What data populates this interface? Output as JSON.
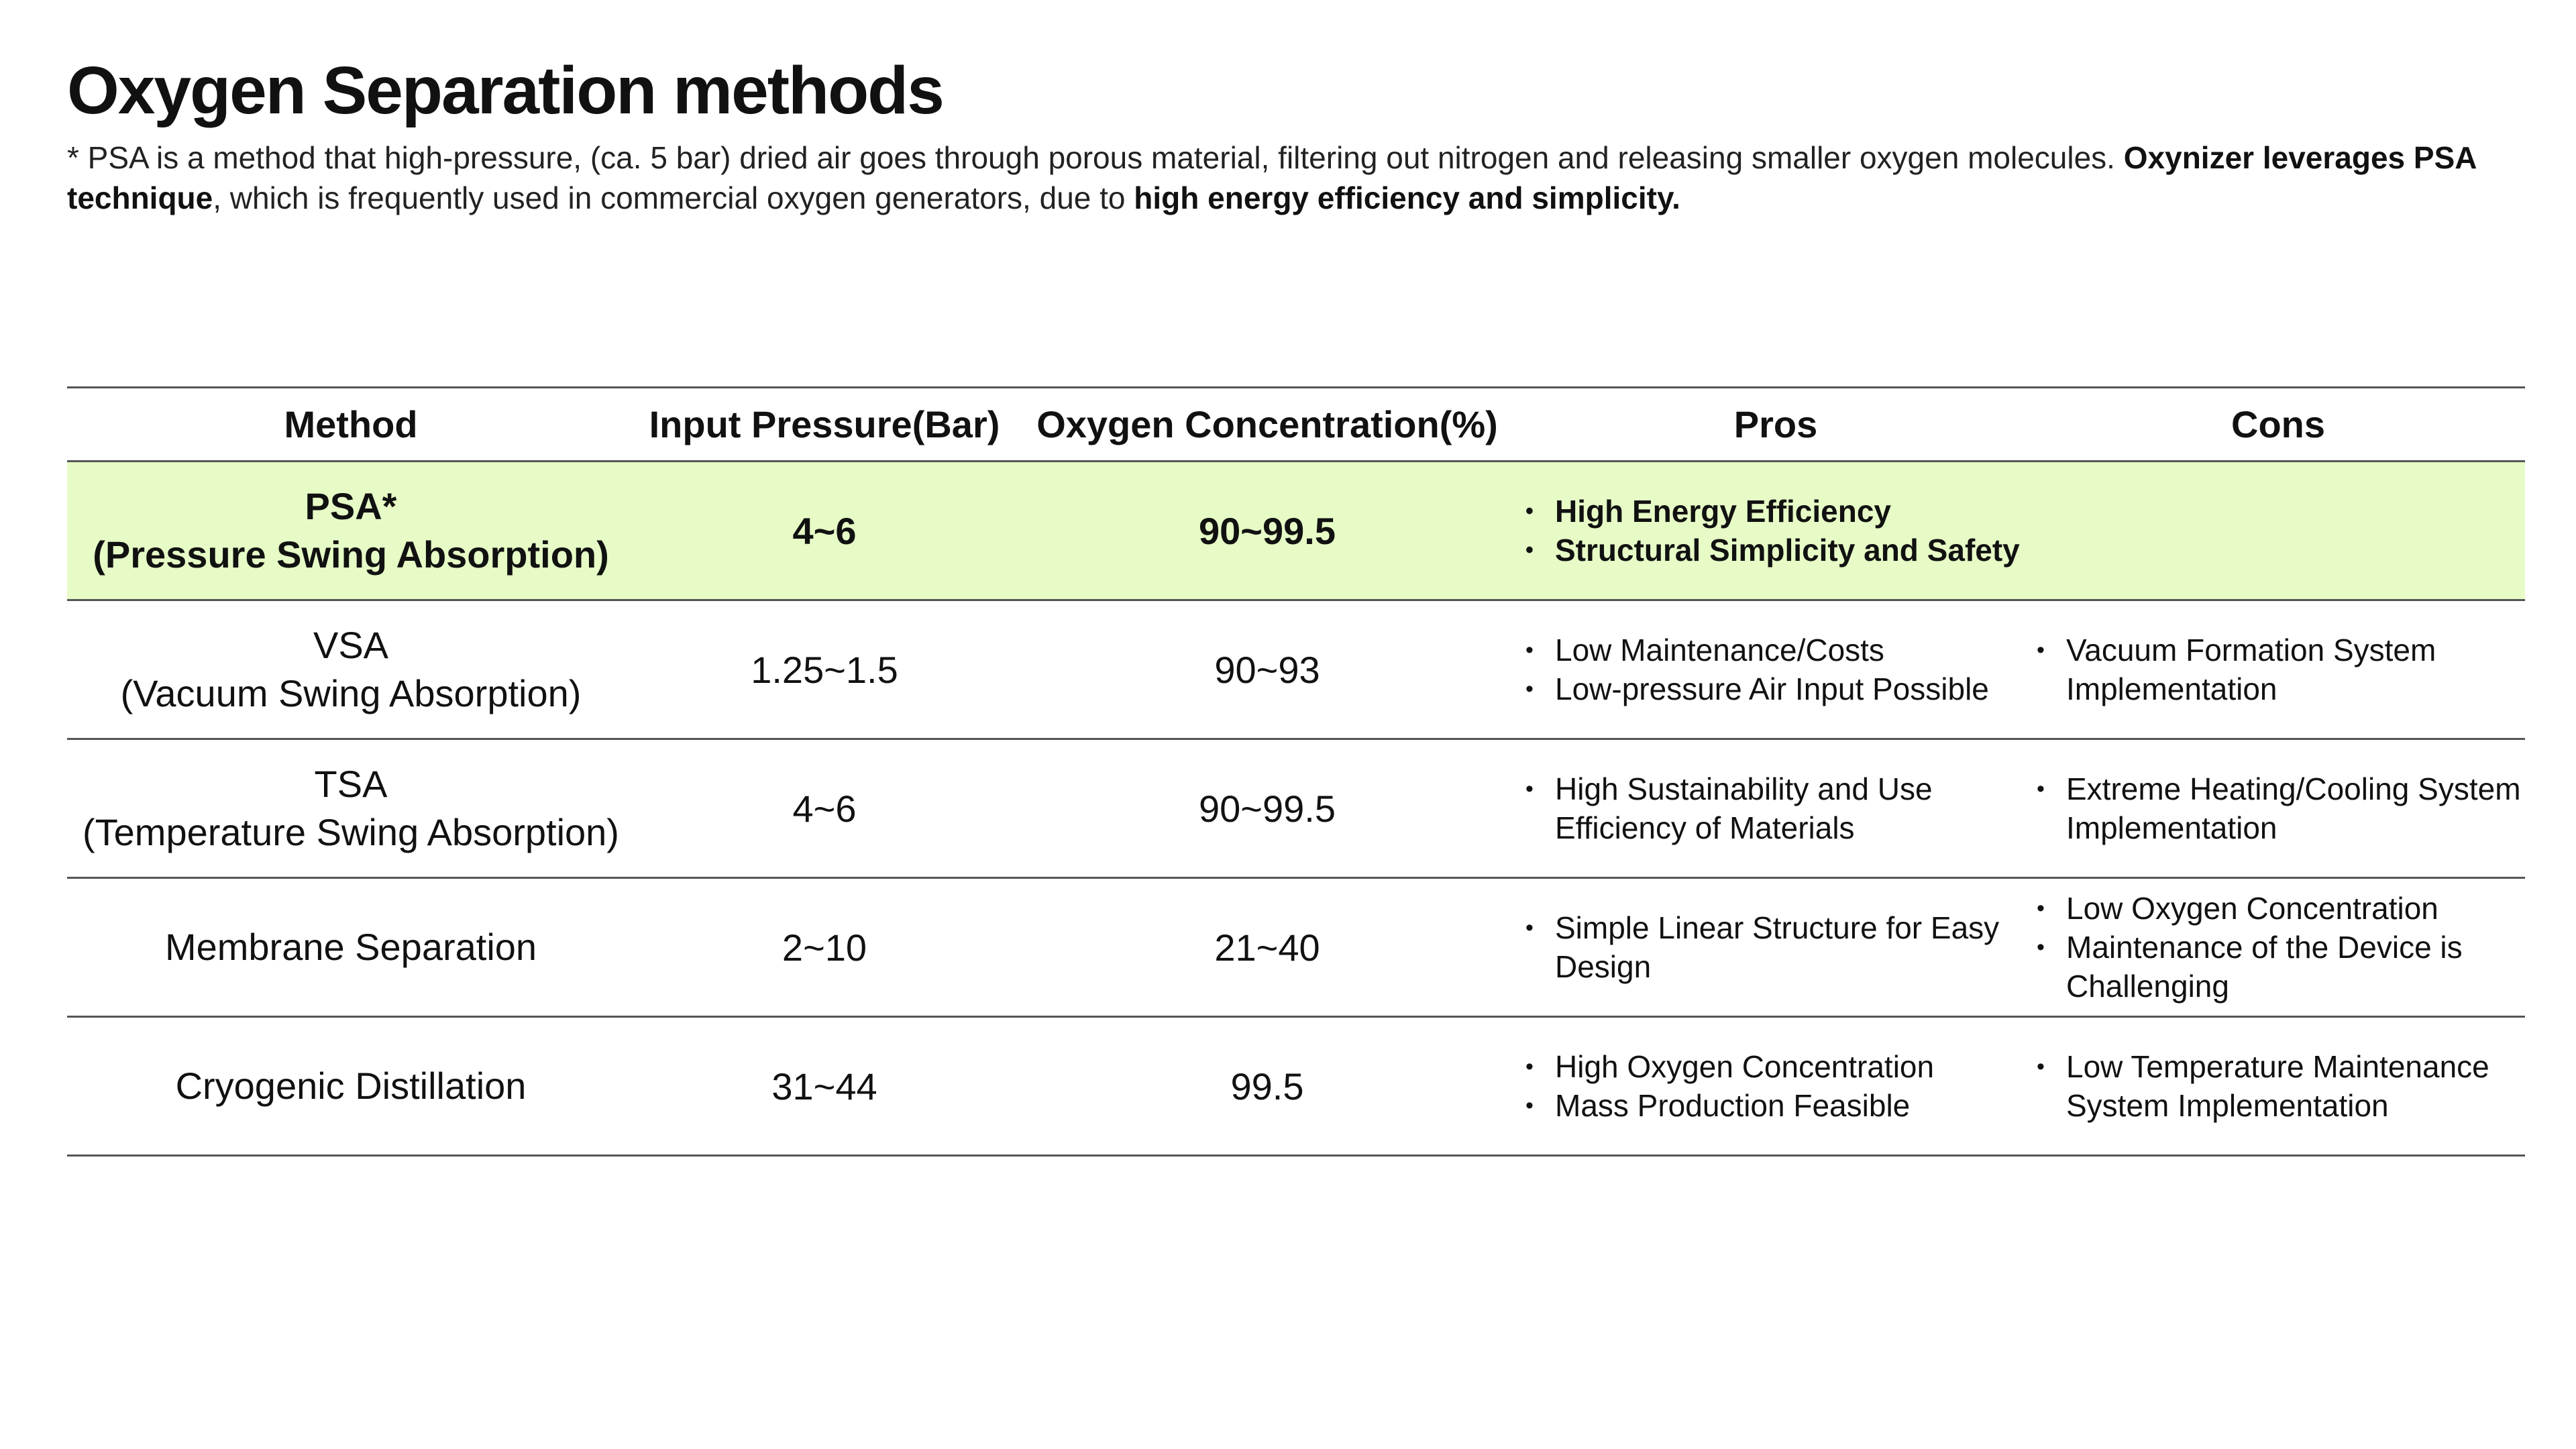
{
  "title": "Oxygen Separation methods",
  "subtitle": {
    "part1": "* PSA is a method that high-pressure, (ca. 5 bar) dried air goes through porous material, filtering out nitrogen and releasing smaller oxygen molecules. ",
    "bold1": "Oxynizer leverages PSA technique",
    "part2": ", which is frequently used in commercial oxygen generators, due to ",
    "bold2": "high energy efficiency and simplicity."
  },
  "table": {
    "headers": {
      "method": "Method",
      "pressure": "Input Pressure(Bar)",
      "concentration": "Oxygen Concentration(%)",
      "pros": "Pros",
      "cons": "Cons"
    },
    "rows": [
      {
        "name": "PSA*",
        "full_name": "(Pressure Swing Absorption)",
        "pressure": "4~6",
        "concentration": "90~99.5",
        "pros": [
          "High Energy Efficiency",
          "Structural Simplicity and Safety"
        ],
        "cons": []
      },
      {
        "name": "VSA",
        "full_name": "(Vacuum Swing Absorption)",
        "pressure": "1.25~1.5",
        "concentration": "90~93",
        "pros": [
          "Low Maintenance/Costs",
          "Low-pressure Air Input Possible"
        ],
        "cons": [
          "Vacuum Formation System Implementation"
        ]
      },
      {
        "name": "TSA",
        "full_name": "(Temperature Swing Absorption)",
        "pressure": "4~6",
        "concentration": "90~99.5",
        "pros": [
          "High Sustainability and Use Efficiency of Materials"
        ],
        "cons": [
          "Extreme Heating/Cooling System Implementation"
        ]
      },
      {
        "name": "Membrane Separation",
        "full_name": "",
        "pressure": "2~10",
        "concentration": "21~40",
        "pros": [
          "Simple Linear Structure for Easy Design"
        ],
        "cons": [
          "Low Oxygen Concentration",
          "Maintenance of the Device is Challenging"
        ]
      },
      {
        "name": "Cryogenic Distillation",
        "full_name": "",
        "pressure": "31~44",
        "concentration": "99.5",
        "pros": [
          "High Oxygen Concentration",
          "Mass Production Feasible"
        ],
        "cons": [
          "Low Temperature Maintenance System Implementation"
        ]
      }
    ]
  },
  "colors": {
    "highlight_row": "#e6fbc6",
    "rule": "#555555",
    "text": "#111111"
  }
}
